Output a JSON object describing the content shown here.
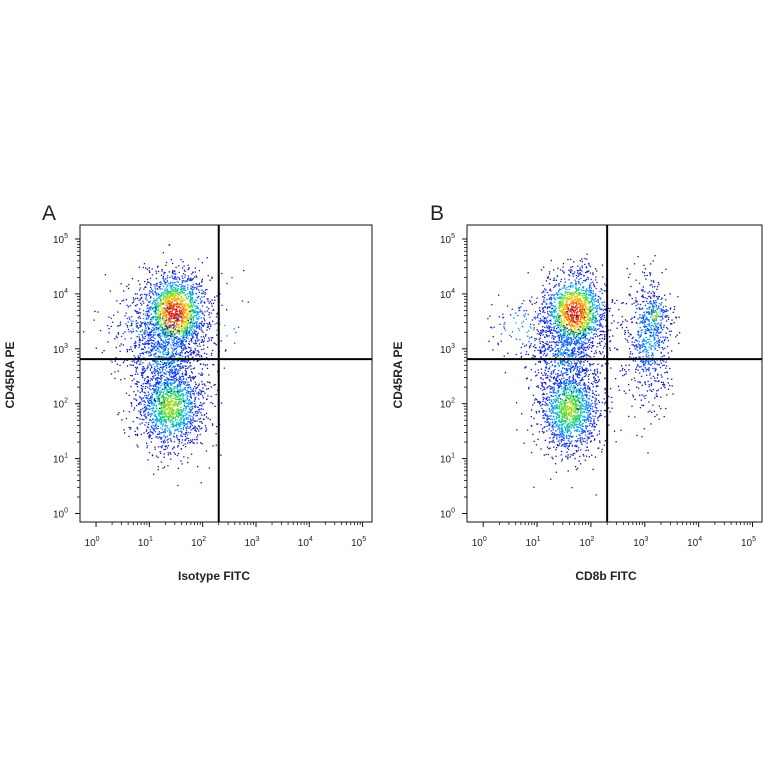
{
  "chart_data": [
    {
      "type": "scatter",
      "panel_label": "A",
      "xlabel": "Isotype FITC",
      "ylabel": "CD45RA PE",
      "x_scale": "log",
      "y_scale": "log",
      "xlim": [
        0.5,
        150000
      ],
      "ylim": [
        0.7,
        180000
      ],
      "x_ticks": [
        {
          "base": "10",
          "exp": "0",
          "value": 1
        },
        {
          "base": "10",
          "exp": "1",
          "value": 10
        },
        {
          "base": "10",
          "exp": "2",
          "value": 100
        },
        {
          "base": "10",
          "exp": "3",
          "value": 1000
        },
        {
          "base": "10",
          "exp": "4",
          "value": 10000
        },
        {
          "base": "10",
          "exp": "5",
          "value": 100000
        }
      ],
      "y_ticks": [
        {
          "base": "10",
          "exp": "0",
          "value": 1
        },
        {
          "base": "10",
          "exp": "1",
          "value": 10
        },
        {
          "base": "10",
          "exp": "2",
          "value": 100
        },
        {
          "base": "10",
          "exp": "3",
          "value": 1000
        },
        {
          "base": "10",
          "exp": "4",
          "value": 10000
        },
        {
          "base": "10",
          "exp": "5",
          "value": 100000
        }
      ],
      "quadrant_gates": {
        "x": 200,
        "y": 650
      },
      "populations": [
        {
          "x_center": 30,
          "y_center": 4500,
          "x_spread_decades": 0.32,
          "y_spread_decades": 0.38,
          "events": 1700,
          "density_peak": "high"
        },
        {
          "x_center": 25,
          "y_center": 90,
          "x_spread_decades": 0.33,
          "y_spread_decades": 0.42,
          "events": 1500,
          "density_peak": "medium"
        },
        {
          "x_center": 20,
          "y_center": 700,
          "x_spread_decades": 0.4,
          "y_spread_decades": 0.35,
          "events": 600,
          "density_peak": "low"
        },
        {
          "x_center": 8,
          "y_center": 2500,
          "x_spread_decades": 0.4,
          "y_spread_decades": 0.3,
          "events": 180,
          "density_peak": "low"
        },
        {
          "x_center": 250,
          "y_center": 3000,
          "x_spread_decades": 0.3,
          "y_spread_decades": 0.6,
          "events": 20,
          "density_peak": "low"
        }
      ],
      "color_scale": [
        "#0a0a9a",
        "#1432ff",
        "#00a8ff",
        "#19d65a",
        "#e8e000",
        "#ff7a00",
        "#e01010"
      ],
      "gate_color": "#000000"
    },
    {
      "type": "scatter",
      "panel_label": "B",
      "xlabel": "CD8b FITC",
      "ylabel": "CD45RA PE",
      "x_scale": "log",
      "y_scale": "log",
      "xlim": [
        0.5,
        150000
      ],
      "ylim": [
        0.7,
        180000
      ],
      "x_ticks": [
        {
          "base": "10",
          "exp": "0",
          "value": 1
        },
        {
          "base": "10",
          "exp": "1",
          "value": 10
        },
        {
          "base": "10",
          "exp": "2",
          "value": 100
        },
        {
          "base": "10",
          "exp": "3",
          "value": 1000
        },
        {
          "base": "10",
          "exp": "4",
          "value": 10000
        },
        {
          "base": "10",
          "exp": "5",
          "value": 100000
        }
      ],
      "y_ticks": [
        {
          "base": "10",
          "exp": "0",
          "value": 1
        },
        {
          "base": "10",
          "exp": "1",
          "value": 10
        },
        {
          "base": "10",
          "exp": "2",
          "value": 100
        },
        {
          "base": "10",
          "exp": "3",
          "value": 1000
        },
        {
          "base": "10",
          "exp": "4",
          "value": 10000
        },
        {
          "base": "10",
          "exp": "5",
          "value": 100000
        }
      ],
      "quadrant_gates": {
        "x": 200,
        "y": 650
      },
      "populations": [
        {
          "x_center": 50,
          "y_center": 4500,
          "x_spread_decades": 0.3,
          "y_spread_decades": 0.38,
          "events": 1600,
          "density_peak": "high"
        },
        {
          "x_center": 40,
          "y_center": 80,
          "x_spread_decades": 0.3,
          "y_spread_decades": 0.42,
          "events": 1400,
          "density_peak": "medium"
        },
        {
          "x_center": 35,
          "y_center": 700,
          "x_spread_decades": 0.35,
          "y_spread_decades": 0.35,
          "events": 500,
          "density_peak": "low"
        },
        {
          "x_center": 1200,
          "y_center": 1500,
          "x_spread_decades": 0.22,
          "y_spread_decades": 0.55,
          "events": 650,
          "density_peak": "low"
        },
        {
          "x_center": 1500,
          "y_center": 4000,
          "x_spread_decades": 0.15,
          "y_spread_decades": 0.2,
          "events": 120,
          "density_peak": "medium"
        },
        {
          "x_center": 5,
          "y_center": 2500,
          "x_spread_decades": 0.35,
          "y_spread_decades": 0.3,
          "events": 120,
          "density_peak": "low"
        }
      ],
      "color_scale": [
        "#0a0a9a",
        "#1432ff",
        "#00a8ff",
        "#19d65a",
        "#e8e000",
        "#ff7a00",
        "#e01010"
      ],
      "gate_color": "#000000"
    }
  ]
}
